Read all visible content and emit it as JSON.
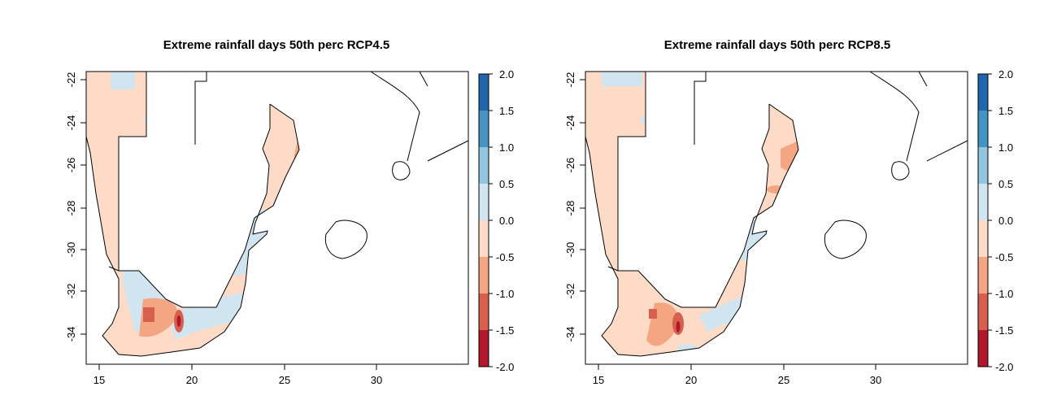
{
  "colors": {
    "bins": [
      "#b2182b",
      "#d6604d",
      "#f4a582",
      "#fddbc7",
      "#d1e5f0",
      "#92c5de",
      "#4393c3",
      "#2166ac"
    ]
  },
  "chart_data": [
    {
      "type": "heatmap",
      "title": "Extreme rainfall days 50th perc RCP4.5",
      "x_ticks": [
        "15",
        "20",
        "25",
        "30"
      ],
      "y_ticks": [
        "-22",
        "-24",
        "-26",
        "-28",
        "-30",
        "-32",
        "-34"
      ],
      "xlim": [
        14,
        35
      ],
      "ylim": [
        -35.5,
        -21.5
      ],
      "legend": {
        "placement": "right",
        "breaks": [
          "-2.0",
          "-1.5",
          "-1.0",
          "-0.5",
          "0.0",
          "0.5",
          "1.0",
          "1.5",
          "2.0"
        ]
      }
    },
    {
      "type": "heatmap",
      "title": "Extreme rainfall days 50th perc RCP8.5",
      "x_ticks": [
        "15",
        "20",
        "25",
        "30"
      ],
      "y_ticks": [
        "-22",
        "-24",
        "-26",
        "-28",
        "-30",
        "-32",
        "-34"
      ],
      "xlim": [
        14,
        35
      ],
      "ylim": [
        -35.5,
        -21.5
      ],
      "legend": {
        "placement": "right",
        "breaks": [
          "-2.0",
          "-1.5",
          "-1.0",
          "-0.5",
          "0.0",
          "0.5",
          "1.0",
          "1.5",
          "2.0"
        ]
      }
    }
  ]
}
